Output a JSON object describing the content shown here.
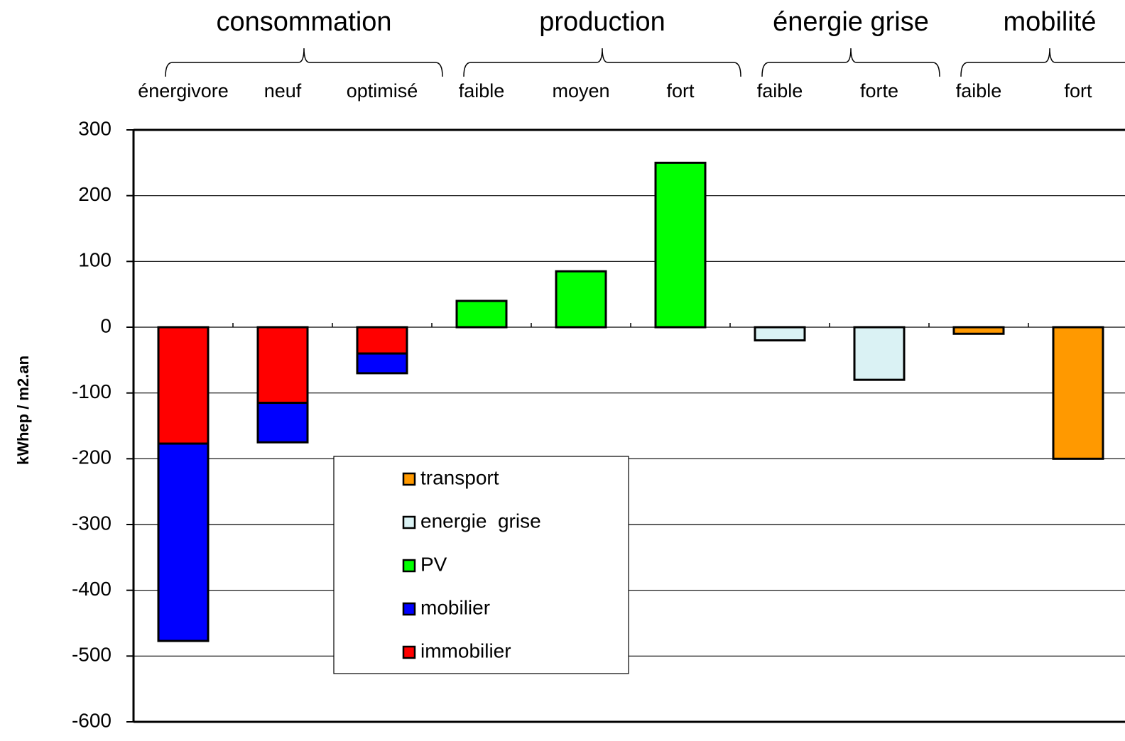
{
  "chart_data": {
    "type": "bar",
    "stacked": true,
    "ylabel": "kWhep  / m2.an",
    "groups": [
      {
        "label": "consommation",
        "size": 3
      },
      {
        "label": "production",
        "size": 3
      },
      {
        "label": "énergie grise",
        "size": 2
      },
      {
        "label": "mobilité",
        "size": 2
      }
    ],
    "categories": [
      "énergivore",
      "neuf",
      "optimisé",
      "faible",
      "moyen",
      "fort",
      "faible",
      "forte",
      "faible",
      "fort"
    ],
    "series": [
      {
        "name": "immobilier",
        "color": "#ff0000",
        "values": [
          -177,
          -115,
          -40,
          null,
          null,
          null,
          null,
          null,
          null,
          null
        ]
      },
      {
        "name": "mobilier",
        "color": "#0000ff",
        "values": [
          -300,
          -60,
          -30,
          null,
          null,
          null,
          null,
          null,
          null,
          null
        ]
      },
      {
        "name": "PV",
        "color": "#00ff00",
        "values": [
          null,
          null,
          null,
          40,
          85,
          250,
          null,
          null,
          null,
          null
        ]
      },
      {
        "name": "energie  grise",
        "color": "#daf2f4",
        "values": [
          null,
          null,
          null,
          null,
          null,
          null,
          -20,
          -80,
          null,
          null
        ]
      },
      {
        "name": "transport",
        "color": "#ff9900",
        "values": [
          null,
          null,
          null,
          null,
          null,
          null,
          null,
          null,
          -10,
          -200
        ]
      }
    ],
    "ylim": [
      -600,
      300
    ],
    "yticks": [
      300,
      200,
      100,
      0,
      -100,
      -200,
      -300,
      -400,
      -500,
      -600
    ],
    "grid": true
  }
}
